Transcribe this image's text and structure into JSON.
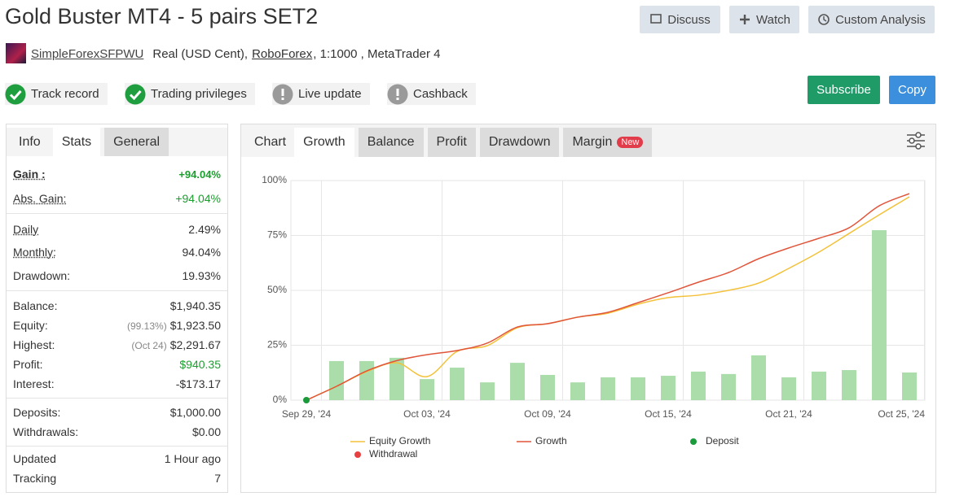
{
  "header": {
    "title": "Gold Buster MT4 - 5 pairs SET2",
    "buttons": [
      "Discuss",
      "Watch",
      "Custom Analysis"
    ],
    "author": "SimpleForexSFPWU",
    "account": "Real (USD Cent),",
    "broker": "RoboForex",
    "details": ", 1:1000 , MetaTrader 4"
  },
  "badges": [
    {
      "label": "Track record",
      "status": "ok"
    },
    {
      "label": "Trading privileges",
      "status": "ok"
    },
    {
      "label": "Live update",
      "status": "warn"
    },
    {
      "label": "Cashback",
      "status": "warn"
    }
  ],
  "actions": [
    {
      "label": "Subscribe",
      "color": "#1f9b68"
    },
    {
      "label": "Copy",
      "color": "#3b8fdc"
    }
  ],
  "stats": {
    "tabs": [
      "Info",
      "Stats",
      "General"
    ],
    "active_tab": 1,
    "groups": [
      [
        {
          "label": "Gain :",
          "value": "+94.04%",
          "positive": true,
          "underline": true,
          "bold": true
        },
        {
          "label": "Abs. Gain:",
          "value": "+94.04%",
          "positive": true,
          "underline": true
        }
      ],
      [
        {
          "label": "Daily",
          "value": "2.49%",
          "underline": true
        },
        {
          "label": "Monthly:",
          "value": "94.04%",
          "underline": true
        },
        {
          "label": "Drawdown:",
          "value": "19.93%"
        }
      ],
      [
        {
          "label": "Balance:",
          "value": "$1,940.35"
        },
        {
          "label": "Equity:",
          "note": "(99.13%)",
          "value": "$1,923.50"
        },
        {
          "label": "Highest:",
          "note": "(Oct 24)",
          "value": "$2,291.67"
        },
        {
          "label": "Profit:",
          "value": "$940.35",
          "positive": true
        },
        {
          "label": "Interest:",
          "value": "-$173.17"
        }
      ],
      [
        {
          "label": "Deposits:",
          "value": "$1,000.00"
        },
        {
          "label": "Withdrawals:",
          "value": "$0.00"
        }
      ],
      [
        {
          "label": "Updated",
          "value": "1 Hour ago"
        },
        {
          "label": "Tracking",
          "value": "7"
        }
      ]
    ]
  },
  "chart_tabs": {
    "label": "Chart",
    "tabs": [
      "Growth",
      "Balance",
      "Profit",
      "Drawdown",
      "Margin"
    ],
    "active_tab": 0,
    "new_badge": "New",
    "new_tab": 4
  },
  "chart_data": {
    "type": "combo",
    "categories": [
      "Sep 29, '24",
      null,
      null,
      null,
      "Oct 03, '24",
      null,
      null,
      null,
      "Oct 09, '24",
      null,
      null,
      null,
      "Oct 15, '24",
      null,
      null,
      null,
      "Oct 21, '24",
      null,
      null,
      null,
      "Oct 25, '24"
    ],
    "bars": {
      "color": "#abddab",
      "values": [
        null,
        17.8,
        17.8,
        19.3,
        9.6,
        14.8,
        8.1,
        17,
        11.5,
        8.1,
        10.4,
        10.4,
        11.1,
        13,
        11.9,
        20.4,
        10.4,
        13,
        13.7,
        77.4,
        12.6
      ]
    },
    "series": [
      {
        "name": "Equity Growth",
        "color": "#f3c13a",
        "values": [
          0,
          6.3,
          13,
          17,
          10.7,
          22.2,
          24.8,
          33,
          34.8,
          37.8,
          39.6,
          43.7,
          46.7,
          47.8,
          50,
          53.3,
          60,
          67.4,
          75.9,
          84.4,
          92.6
        ]
      },
      {
        "name": "Growth",
        "color": "#e0553a",
        "values": [
          0,
          6.3,
          13.3,
          18,
          20.7,
          22.6,
          26,
          33.3,
          34.8,
          37.8,
          40,
          44.4,
          48.9,
          53.7,
          58.1,
          64.4,
          69.3,
          73.7,
          78.5,
          88.5,
          94.04
        ]
      }
    ],
    "points": [
      {
        "name": "Deposit",
        "color": "#1a9a3a",
        "values": [
          0,
          null,
          null,
          null,
          null,
          null,
          null,
          null,
          null,
          null,
          null,
          null,
          null,
          null,
          null,
          null,
          null,
          null,
          null,
          null,
          null
        ]
      },
      {
        "name": "Withdrawal",
        "color": "#e84040",
        "values": [
          null,
          null,
          null,
          null,
          null,
          null,
          null,
          null,
          null,
          null,
          null,
          null,
          null,
          null,
          null,
          null,
          null,
          null,
          null,
          null,
          null
        ]
      }
    ],
    "ylim": [
      0,
      100
    ],
    "yticks": [
      {
        "value": 0,
        "label": "0%"
      },
      {
        "value": 25,
        "label": "25%"
      },
      {
        "value": 50,
        "label": "50%"
      },
      {
        "value": 75,
        "label": "75%"
      },
      {
        "value": 100,
        "label": "100%"
      }
    ],
    "grid": true
  }
}
